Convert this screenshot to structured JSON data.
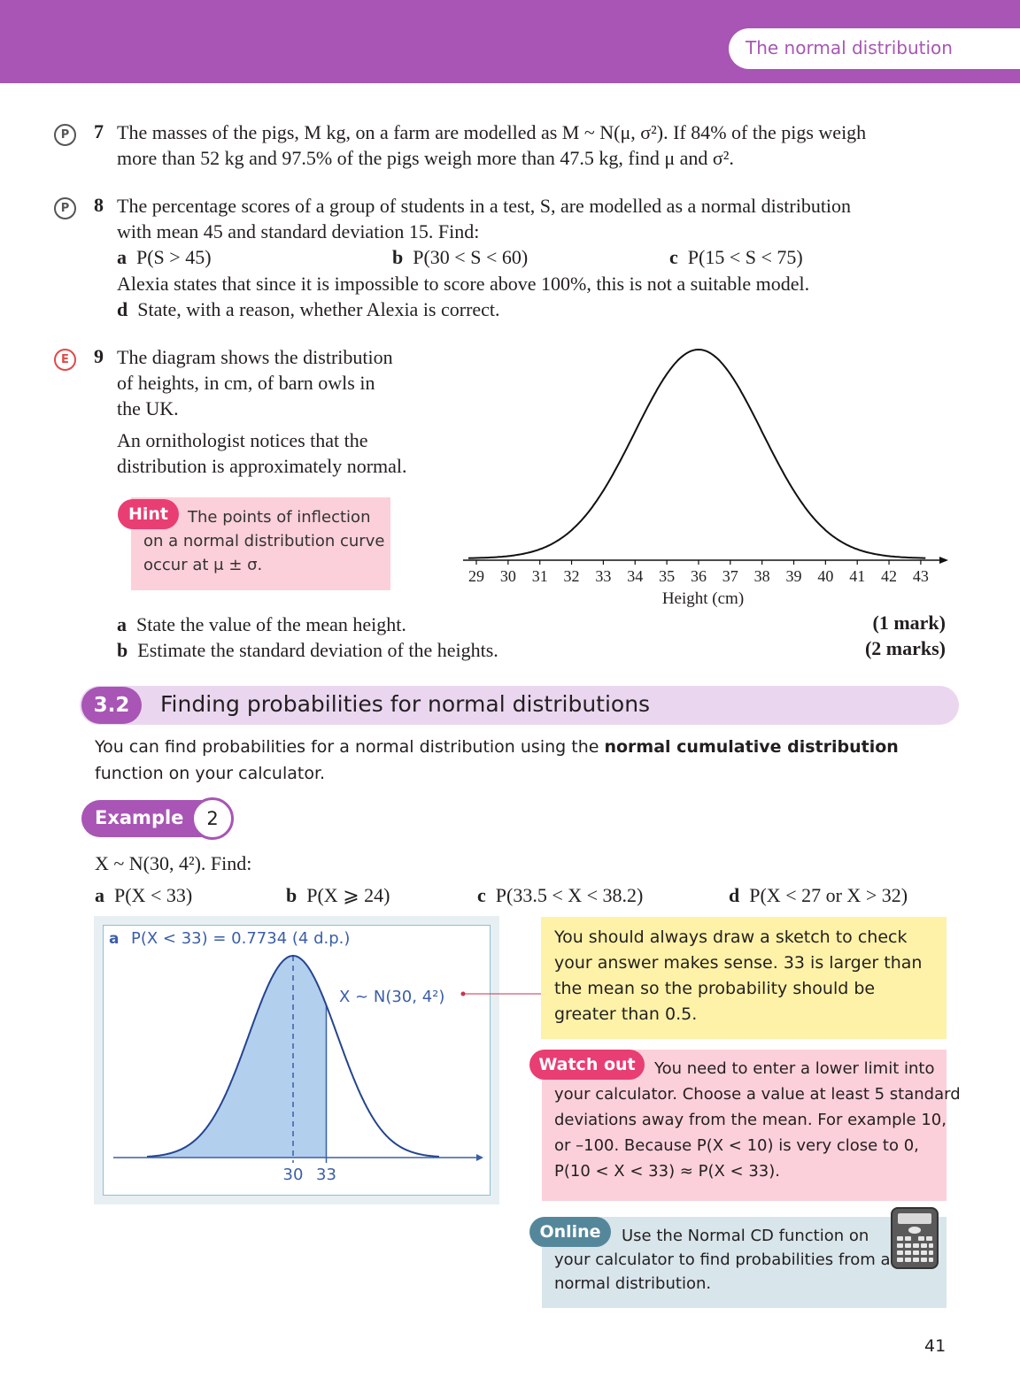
{
  "header": {
    "title": "The normal distribution"
  },
  "q7": {
    "badge": "P",
    "number": "7",
    "line1": "The masses of the pigs, M kg, on a farm are modelled as M ~ N(μ, σ²). If 84% of the pigs weigh",
    "line2": "more than 52 kg and 97.5% of the pigs weigh more than 47.5 kg, find μ and σ²."
  },
  "q8": {
    "badge": "P",
    "number": "8",
    "line1": "The percentage scores of a group of students in a test, S, are modelled as a normal distribution",
    "line2": "with mean 45 and standard deviation 15. Find:",
    "parts": [
      {
        "letter": "a",
        "text": "P(S > 45)"
      },
      {
        "letter": "b",
        "text": "P(30 < S < 60)"
      },
      {
        "letter": "c",
        "text": "P(15 < S < 75)"
      }
    ],
    "line3": "Alexia states that since it is impossible to score above 100%, this is not a suitable model.",
    "part_d": {
      "letter": "d",
      "text": "State, with a reason, whether Alexia is correct."
    }
  },
  "q9": {
    "badge": "E",
    "number": "9",
    "para1": [
      "The diagram shows the distribution",
      "of heights, in cm, of barn owls in",
      "the UK."
    ],
    "para2": [
      "An ornithologist notices that the",
      "distribution is approximately normal."
    ],
    "parts": [
      {
        "letter": "a",
        "text": "State the value of the mean height.",
        "marks": "(1 mark)"
      },
      {
        "letter": "b",
        "text": "Estimate the standard deviation of the heights.",
        "marks": "(2 marks)"
      }
    ]
  },
  "hint": {
    "label": "Hint",
    "lines": [
      "The points of inflection",
      "on a normal distribution curve",
      "occur at μ ± σ."
    ]
  },
  "owl_chart": {
    "chart_data": {
      "type": "line",
      "title": "",
      "xlabel": "Height (cm)",
      "ylabel": "",
      "x_ticks": [
        29,
        30,
        31,
        32,
        33,
        34,
        35,
        36,
        37,
        38,
        39,
        40,
        41,
        42,
        43
      ],
      "xlim": [
        29,
        43
      ],
      "mean": 36,
      "sd": 2,
      "grid": false
    }
  },
  "section": {
    "number": "3.2",
    "title": "Finding probabilities for normal distributions",
    "intro_pre": "You can find probabilities for a normal distribution using the ",
    "intro_bold": "normal cumulative distribution",
    "intro_line2": "function on your calculator."
  },
  "example": {
    "label": "Example",
    "number": "2",
    "stem": "X ~ N(30, 4²). Find:",
    "parts": [
      {
        "letter": "a",
        "text": "P(X < 33)"
      },
      {
        "letter": "b",
        "text": "P(X ⩾ 24)"
      },
      {
        "letter": "c",
        "text": "P(33.5 < X < 38.2)"
      },
      {
        "letter": "d",
        "text": "P(X < 27 or X > 32)"
      }
    ]
  },
  "solution": {
    "letter": "a",
    "answer": "P(X < 33) = 0.7734 (4 d.p.)",
    "curve_label": "X ~ N(30, 4²)",
    "chart_data": {
      "type": "area",
      "mean": 30,
      "sd": 4,
      "shade_upper": 33,
      "x_labels": [
        "30",
        "33"
      ]
    }
  },
  "note": {
    "lines": [
      "You should always draw a sketch to check",
      "your answer makes sense. 33 is larger than",
      "the mean so the probability should be",
      "greater than 0.5."
    ]
  },
  "watch_out": {
    "label": "Watch out",
    "lines": [
      "You need to enter a lower limit into",
      "your calculator. Choose a value at least 5 standard",
      "deviations away from the mean. For example 10,",
      "or –100. Because P(X < 10) is very close to 0,",
      "P(10 < X < 33) ≈ P(X < 33)."
    ]
  },
  "online": {
    "label": "Online",
    "lines": [
      "Use the Normal CD function on",
      "your calculator to find probabilities from a",
      "normal distribution."
    ]
  },
  "page": {
    "number": "41"
  }
}
